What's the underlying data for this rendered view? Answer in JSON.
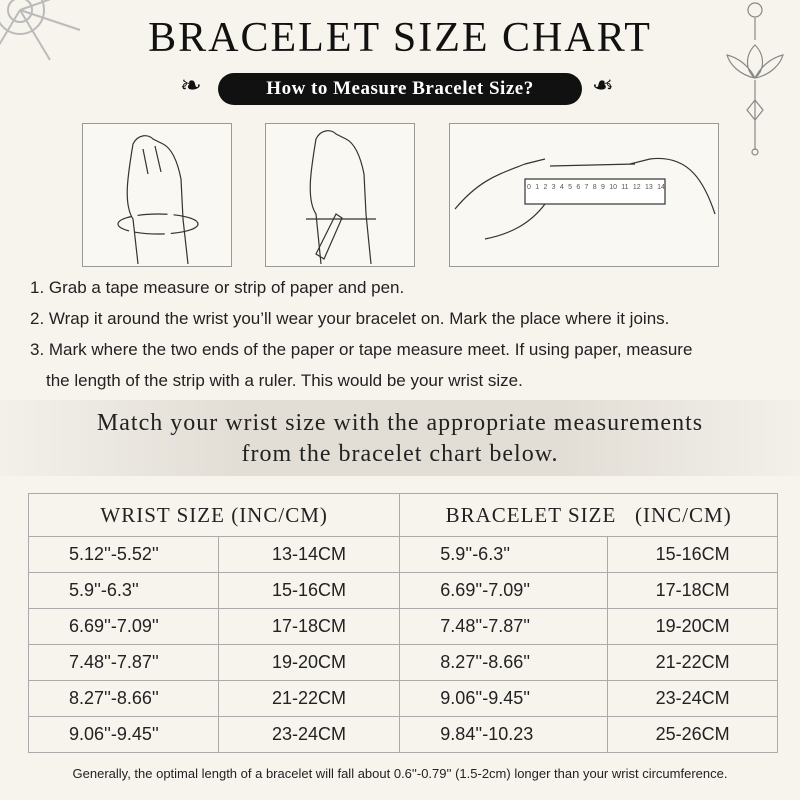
{
  "title": "BRACELET SIZE CHART",
  "subtitle": "How to Measure Bracelet Size?",
  "ruler_labels": [
    "0",
    "1",
    "2",
    "3",
    "4",
    "5",
    "6",
    "7",
    "8",
    "9",
    "10",
    "11",
    "12",
    "13",
    "14"
  ],
  "steps": [
    "1. Grab a tape measure or strip of paper and pen.",
    "2. Wrap it around the wrist you’ll wear your bracelet on. Mark the place where it joins.",
    "3. Mark where the two ends of the paper or tape measure meet. If using paper, measure",
    "the length of the strip with a ruler. This would be your wrist size."
  ],
  "band": {
    "line1": "Match your wrist size with the appropriate measurements",
    "line2": "from the bracelet chart below."
  },
  "table": {
    "headers": [
      "WRIST SIZE (INC/CM)",
      "BRACELET SIZE   (INC/CM)"
    ],
    "rows": [
      [
        "5.12''-5.52''",
        "13-14CM",
        "5.9''-6.3''",
        "15-16CM"
      ],
      [
        "5.9''-6.3''",
        "15-16CM",
        "6.69''-7.09''",
        "17-18CM"
      ],
      [
        "6.69''-7.09''",
        "17-18CM",
        "7.48''-7.87''",
        "19-20CM"
      ],
      [
        "7.48''-7.87''",
        "19-20CM",
        "8.27''-8.66''",
        "21-22CM"
      ],
      [
        "8.27''-8.66''",
        "21-22CM",
        "9.06''-9.45''",
        "23-24CM"
      ],
      [
        "9.06''-9.45''",
        "23-24CM",
        "9.84''-10.23",
        "25-26CM"
      ]
    ]
  },
  "footer": "Generally, the optimal length of a bracelet will fall about 0.6''-0.79'' (1.5-2cm) longer than your wrist circumference."
}
